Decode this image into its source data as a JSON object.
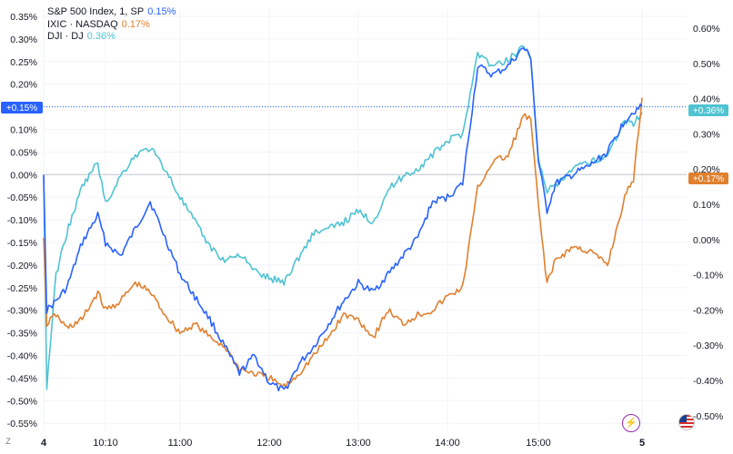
{
  "legend": [
    {
      "name": "S&P 500 Index, 1, SP",
      "value": "0.15%",
      "color": "#2962ff"
    },
    {
      "name": "IXIC · NASDAQ",
      "value": "0.17%",
      "color": "#e0802e"
    },
    {
      "name": "DJI · DJ",
      "value": "0.36%",
      "color": "#4fc3d1"
    }
  ],
  "left_axis_labels": [
    "0.35%",
    "0.30%",
    "0.25%",
    "0.20%",
    "0.15%",
    "0.10%",
    "0.05%",
    "0.00%",
    "-0.05%",
    "-0.10%",
    "-0.15%",
    "-0.20%",
    "-0.25%",
    "-0.30%",
    "-0.35%",
    "-0.40%",
    "-0.45%",
    "-0.50%",
    "-0.55%"
  ],
  "right_axis_labels": [
    "0.60%",
    "0.50%",
    "0.40%",
    "0.30%",
    "0.20%",
    "0.10%",
    "0.00%",
    "-0.10%",
    "-0.20%",
    "-0.30%",
    "-0.40%",
    "-0.50%"
  ],
  "x_axis_labels": [
    {
      "label": "4",
      "bold": true
    },
    {
      "label": "10:10",
      "bold": false
    },
    {
      "label": "11:00",
      "bold": false
    },
    {
      "label": "12:00",
      "bold": false
    },
    {
      "label": "13:00",
      "bold": false
    },
    {
      "label": "14:00",
      "bold": false
    },
    {
      "label": "15:00",
      "bold": false
    },
    {
      "label": "5",
      "bold": true
    }
  ],
  "badges": {
    "left": "+0.15%",
    "right_top": "+0.36%",
    "right_bottom": "+0.17%"
  },
  "controls": {
    "z_label": "Z",
    "flash_icon": "lightning-icon",
    "flag_icon": "us-flag-icon"
  },
  "chart_data": {
    "type": "line",
    "title": "",
    "x_unit": "time",
    "left_axis": {
      "unit": "%",
      "range": [
        -0.55,
        0.35
      ],
      "applies_to": [
        "S&P 500 Index, 1, SP",
        "IXIC · NASDAQ"
      ]
    },
    "right_axis": {
      "unit": "%",
      "range": [
        -0.5,
        0.6
      ],
      "applies_to": [
        "DJI · DJ"
      ]
    },
    "x_ticks": [
      "09:30",
      "10:10",
      "11:00",
      "12:00",
      "13:00",
      "14:00",
      "15:00",
      "16:00"
    ],
    "series": [
      {
        "name": "S&P 500 Index, 1, SP",
        "color": "#2962ff",
        "axis": "left",
        "last": 0.15,
        "points": [
          [
            "09:30",
            0.0
          ],
          [
            "09:32",
            -0.3
          ],
          [
            "09:38",
            -0.28
          ],
          [
            "09:45",
            -0.25
          ],
          [
            "09:55",
            -0.15
          ],
          [
            "10:05",
            -0.09
          ],
          [
            "10:10",
            -0.15
          ],
          [
            "10:20",
            -0.18
          ],
          [
            "10:30",
            -0.12
          ],
          [
            "10:40",
            -0.06
          ],
          [
            "10:50",
            -0.14
          ],
          [
            "11:00",
            -0.22
          ],
          [
            "11:10",
            -0.27
          ],
          [
            "11:20",
            -0.32
          ],
          [
            "11:30",
            -0.38
          ],
          [
            "11:40",
            -0.44
          ],
          [
            "11:50",
            -0.4
          ],
          [
            "12:00",
            -0.46
          ],
          [
            "12:10",
            -0.48
          ],
          [
            "12:20",
            -0.42
          ],
          [
            "12:30",
            -0.38
          ],
          [
            "12:40",
            -0.33
          ],
          [
            "12:50",
            -0.28
          ],
          [
            "13:00",
            -0.24
          ],
          [
            "13:10",
            -0.26
          ],
          [
            "13:20",
            -0.22
          ],
          [
            "13:30",
            -0.18
          ],
          [
            "13:40",
            -0.14
          ],
          [
            "13:50",
            -0.06
          ],
          [
            "14:00",
            -0.05
          ],
          [
            "14:10",
            -0.02
          ],
          [
            "14:20",
            0.24
          ],
          [
            "14:30",
            0.22
          ],
          [
            "14:40",
            0.24
          ],
          [
            "14:50",
            0.28
          ],
          [
            "14:55",
            0.26
          ],
          [
            "15:00",
            0.03
          ],
          [
            "15:05",
            -0.08
          ],
          [
            "15:10",
            -0.02
          ],
          [
            "15:20",
            0.0
          ],
          [
            "15:30",
            0.02
          ],
          [
            "15:40",
            0.05
          ],
          [
            "15:50",
            0.12
          ],
          [
            "15:55",
            0.14
          ],
          [
            "16:00",
            0.15
          ]
        ]
      },
      {
        "name": "IXIC · NASDAQ",
        "color": "#e0802e",
        "axis": "left",
        "last": 0.17,
        "points": [
          [
            "09:30",
            -0.14
          ],
          [
            "09:32",
            -0.33
          ],
          [
            "09:38",
            -0.31
          ],
          [
            "09:45",
            -0.34
          ],
          [
            "09:55",
            -0.32
          ],
          [
            "10:05",
            -0.26
          ],
          [
            "10:10",
            -0.3
          ],
          [
            "10:20",
            -0.28
          ],
          [
            "10:30",
            -0.24
          ],
          [
            "10:40",
            -0.26
          ],
          [
            "10:50",
            -0.31
          ],
          [
            "11:00",
            -0.35
          ],
          [
            "11:10",
            -0.33
          ],
          [
            "11:20",
            -0.36
          ],
          [
            "11:30",
            -0.38
          ],
          [
            "11:40",
            -0.43
          ],
          [
            "11:50",
            -0.44
          ],
          [
            "12:00",
            -0.45
          ],
          [
            "12:10",
            -0.47
          ],
          [
            "12:20",
            -0.44
          ],
          [
            "12:30",
            -0.4
          ],
          [
            "12:40",
            -0.36
          ],
          [
            "12:50",
            -0.31
          ],
          [
            "13:00",
            -0.32
          ],
          [
            "13:10",
            -0.36
          ],
          [
            "13:20",
            -0.3
          ],
          [
            "13:30",
            -0.33
          ],
          [
            "13:40",
            -0.31
          ],
          [
            "13:50",
            -0.3
          ],
          [
            "14:00",
            -0.27
          ],
          [
            "14:10",
            -0.25
          ],
          [
            "14:20",
            -0.03
          ],
          [
            "14:30",
            0.03
          ],
          [
            "14:40",
            0.04
          ],
          [
            "14:50",
            0.13
          ],
          [
            "14:55",
            0.12
          ],
          [
            "15:00",
            -0.07
          ],
          [
            "15:05",
            -0.24
          ],
          [
            "15:10",
            -0.19
          ],
          [
            "15:20",
            -0.16
          ],
          [
            "15:30",
            -0.17
          ],
          [
            "15:40",
            -0.2
          ],
          [
            "15:50",
            -0.05
          ],
          [
            "15:55",
            -0.01
          ],
          [
            "16:00",
            0.17
          ]
        ]
      },
      {
        "name": "DJI · DJ",
        "color": "#4fc3d1",
        "axis": "right",
        "last": 0.36,
        "points": [
          [
            "09:30",
            0.18
          ],
          [
            "09:32",
            -0.42
          ],
          [
            "09:38",
            -0.1
          ],
          [
            "09:45",
            0.02
          ],
          [
            "09:55",
            0.15
          ],
          [
            "10:05",
            0.22
          ],
          [
            "10:10",
            0.1
          ],
          [
            "10:20",
            0.18
          ],
          [
            "10:30",
            0.24
          ],
          [
            "10:40",
            0.26
          ],
          [
            "10:50",
            0.2
          ],
          [
            "11:00",
            0.12
          ],
          [
            "11:10",
            0.05
          ],
          [
            "11:20",
            -0.02
          ],
          [
            "11:30",
            -0.06
          ],
          [
            "11:40",
            -0.04
          ],
          [
            "11:50",
            -0.09
          ],
          [
            "12:00",
            -0.11
          ],
          [
            "12:10",
            -0.12
          ],
          [
            "12:20",
            -0.05
          ],
          [
            "12:30",
            0.02
          ],
          [
            "12:40",
            0.03
          ],
          [
            "12:50",
            0.05
          ],
          [
            "13:00",
            0.08
          ],
          [
            "13:10",
            0.05
          ],
          [
            "13:20",
            0.14
          ],
          [
            "13:30",
            0.18
          ],
          [
            "13:40",
            0.2
          ],
          [
            "13:50",
            0.24
          ],
          [
            "14:00",
            0.28
          ],
          [
            "14:10",
            0.3
          ],
          [
            "14:20",
            0.53
          ],
          [
            "14:30",
            0.49
          ],
          [
            "14:40",
            0.51
          ],
          [
            "14:50",
            0.55
          ],
          [
            "14:55",
            0.52
          ],
          [
            "15:00",
            0.22
          ],
          [
            "15:05",
            0.14
          ],
          [
            "15:10",
            0.15
          ],
          [
            "15:20",
            0.2
          ],
          [
            "15:30",
            0.22
          ],
          [
            "15:40",
            0.24
          ],
          [
            "15:50",
            0.34
          ],
          [
            "15:55",
            0.33
          ],
          [
            "16:00",
            0.36
          ]
        ]
      }
    ]
  }
}
